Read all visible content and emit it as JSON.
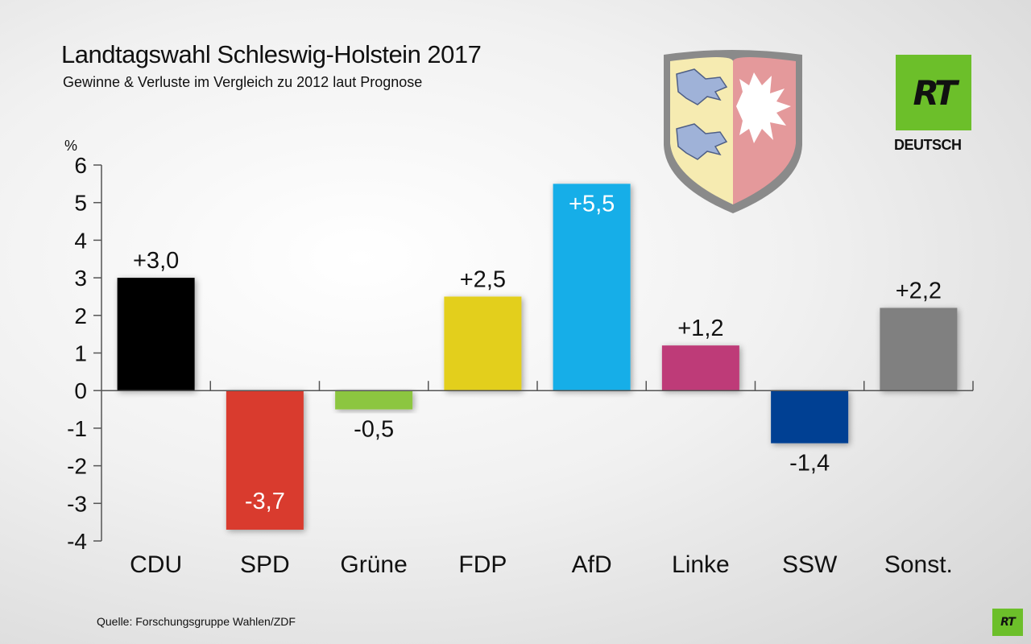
{
  "header": {
    "title": "Landtagswahl Schleswig-Holstein 2017",
    "subtitle": "Gewinne & Verluste im Vergleich zu 2012 laut Prognose"
  },
  "footer": {
    "source": "Quelle: Forschungsgruppe Wahlen/ZDF"
  },
  "brand": {
    "logo_text": "RT",
    "logo_sub": "DEUTSCH",
    "mini_logo_text": "RT",
    "color": "#6cbf2a"
  },
  "chart_data": {
    "type": "bar",
    "title": "Landtagswahl Schleswig-Holstein 2017",
    "subtitle": "Gewinne & Verluste im Vergleich zu 2012 laut Prognose",
    "ylabel": "%",
    "xlabel": "",
    "ylim": [
      -4,
      6
    ],
    "yticks": [
      6,
      5,
      4,
      3,
      2,
      1,
      0,
      -1,
      -2,
      -3,
      -4
    ],
    "categories": [
      "CDU",
      "SPD",
      "Grüne",
      "FDP",
      "AfD",
      "Linke",
      "SSW",
      "Sonst."
    ],
    "values": [
      3.0,
      -3.7,
      -0.5,
      2.5,
      5.5,
      1.2,
      -1.4,
      2.2
    ],
    "labels": [
      "+3,0",
      "-3,7",
      "-0,5",
      "+2,5",
      "+5,5",
      "+1,2",
      "-1,4",
      "+2,2"
    ],
    "colors": [
      "#000000",
      "#d93a2e",
      "#8cc63f",
      "#e3cf1a",
      "#17aee8",
      "#be3a78",
      "#003f93",
      "#808080"
    ],
    "label_inside": [
      false,
      true,
      false,
      false,
      true,
      false,
      false,
      false
    ],
    "grid": false
  }
}
